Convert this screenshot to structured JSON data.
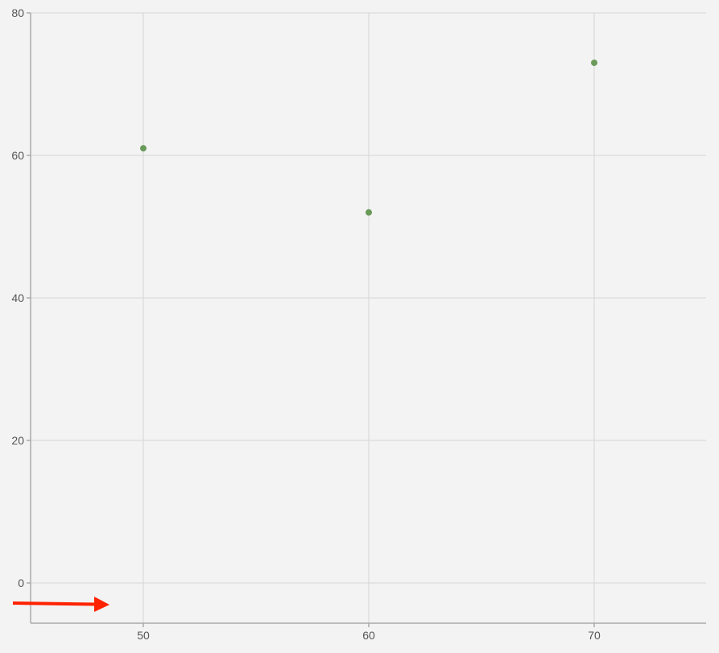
{
  "chart_data": {
    "type": "scatter",
    "title": "",
    "xlabel": "",
    "ylabel": "",
    "xlim": [
      45,
      75
    ],
    "ylim": [
      -5.65,
      80
    ],
    "grid": true,
    "x_ticks": [
      50,
      60,
      70
    ],
    "y_ticks": [
      0,
      20,
      40,
      60,
      80
    ],
    "points": [
      {
        "x": 50,
        "y": 61
      },
      {
        "x": 60,
        "y": 52
      },
      {
        "x": 70,
        "y": 73
      }
    ],
    "colors": {
      "background": "#f3f3f3",
      "grid": "#d6d6d6",
      "axis": "#aaaaaa",
      "point": "#6a9a5a",
      "annotation_arrow": "#ff2200"
    },
    "annotations": [
      {
        "type": "arrow",
        "direction": "right",
        "color": "#ff2200"
      }
    ]
  }
}
